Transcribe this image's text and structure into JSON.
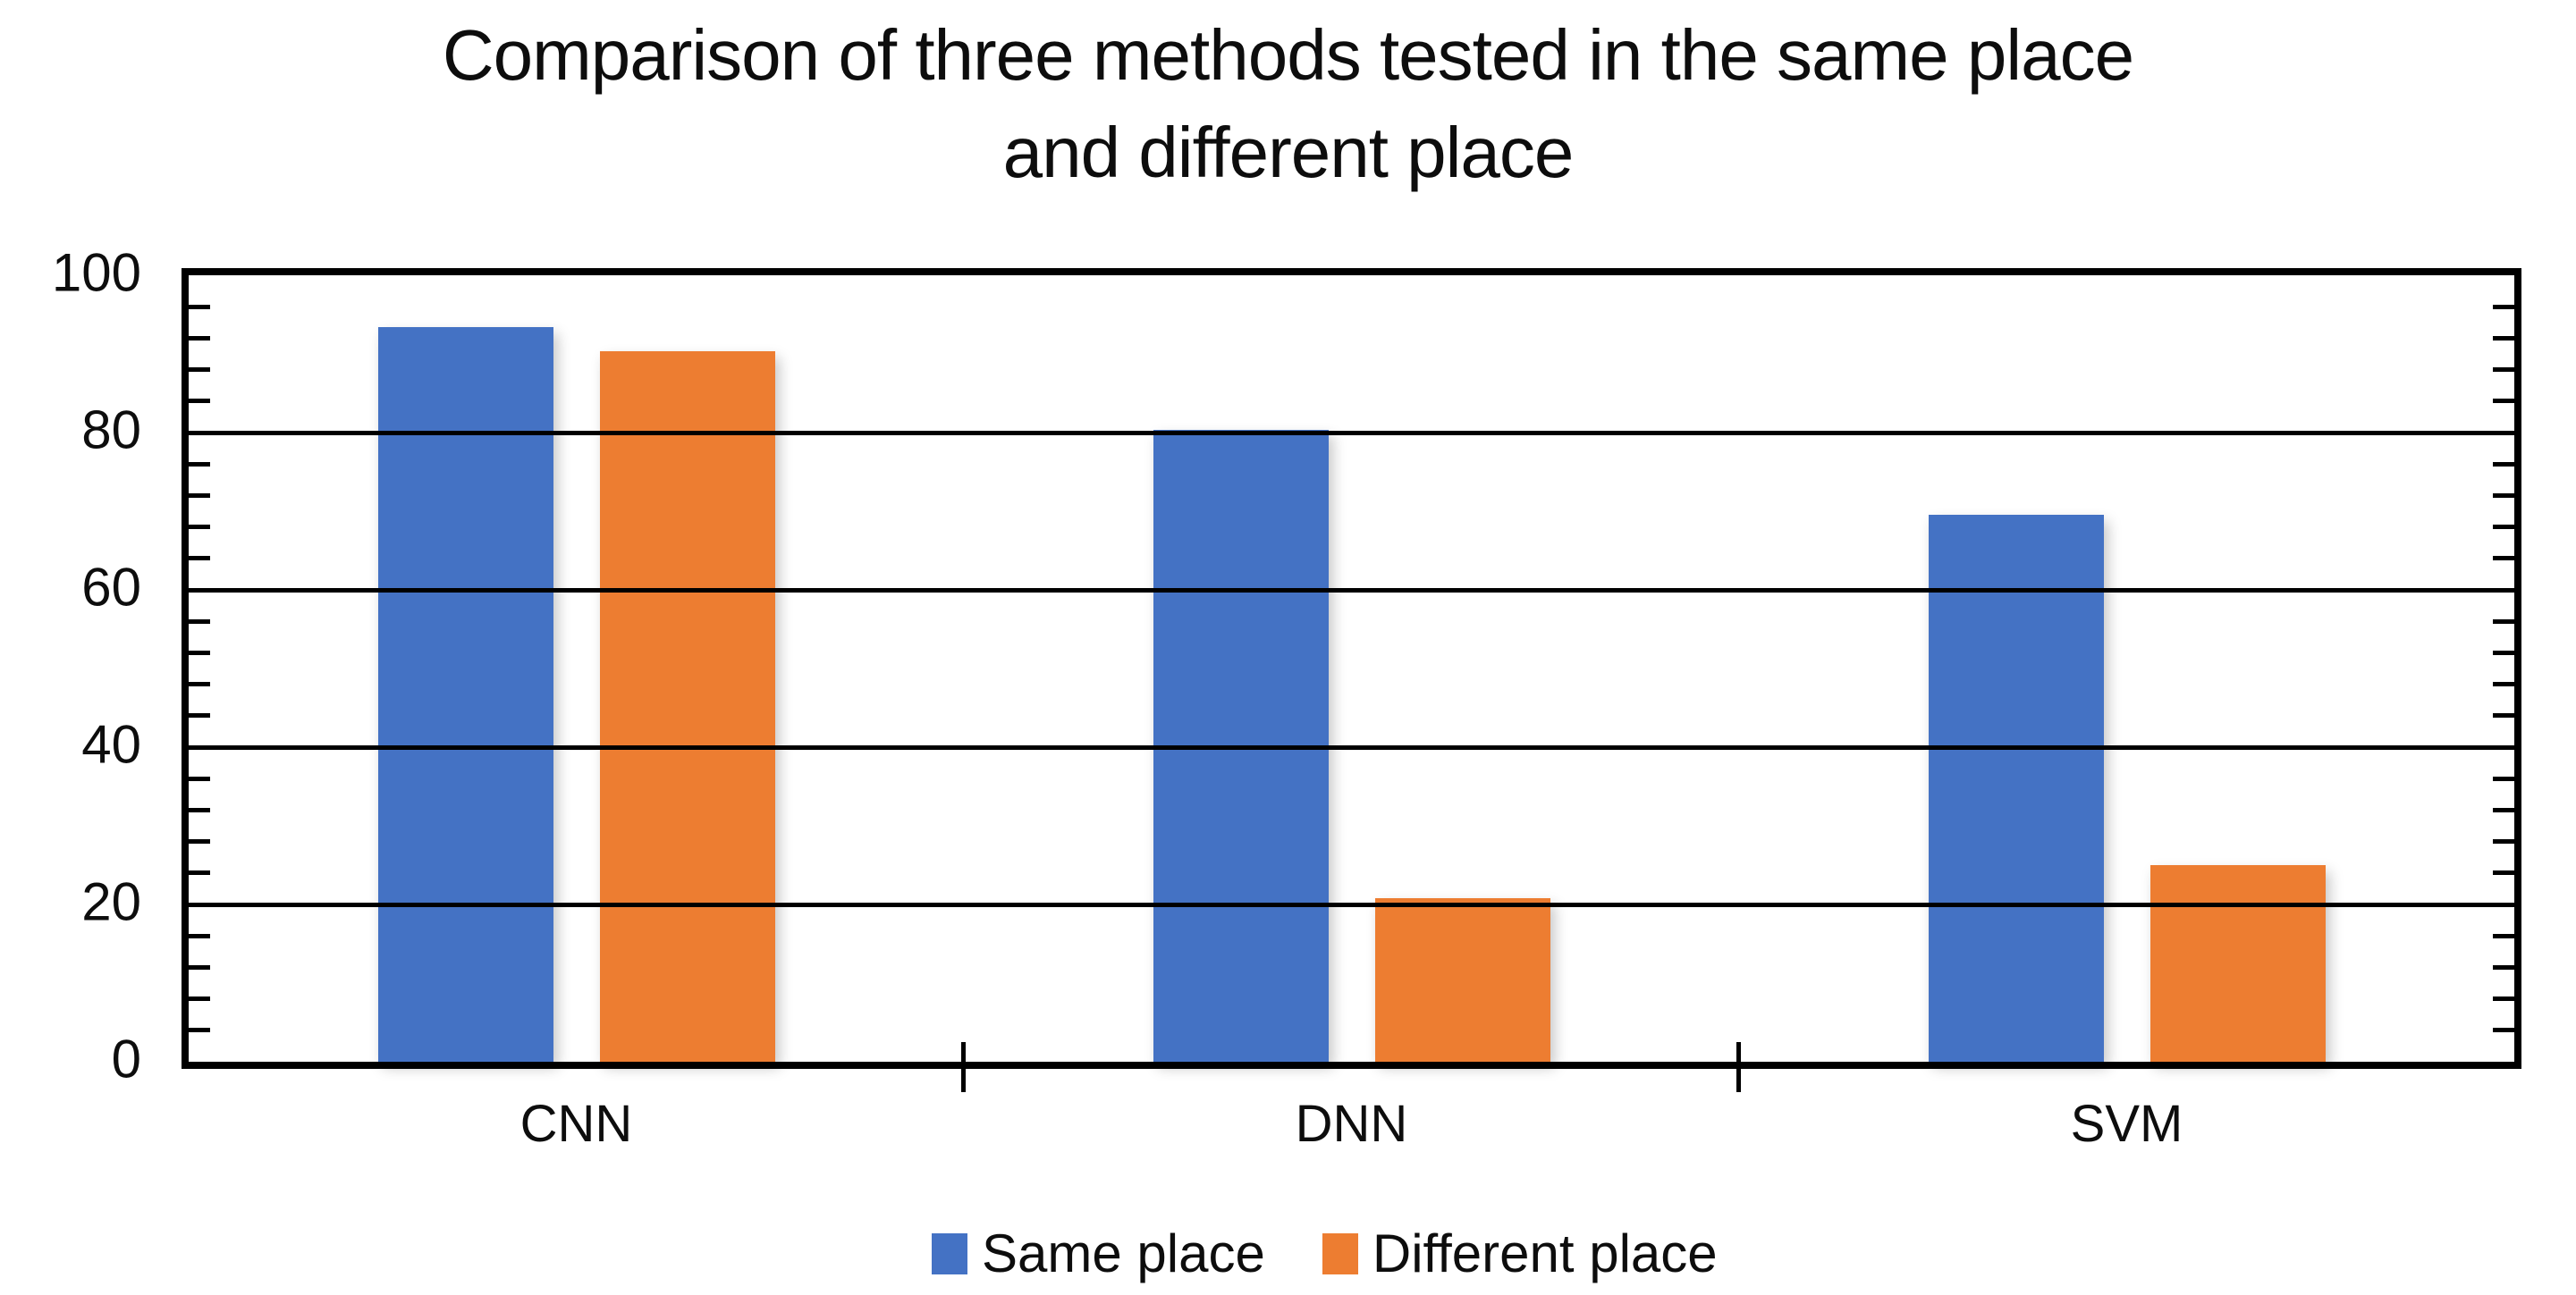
{
  "chart_data": {
    "type": "bar",
    "title": "Comparison of three methods tested in the same place and different place",
    "title_lines": [
      "Comparison of three methods tested in the same place",
      "and different place"
    ],
    "categories": [
      "CNN",
      "DNN",
      "SVM"
    ],
    "series": [
      {
        "name": "Same place",
        "color": "#4472C4",
        "values": [
          93.4,
          80.3,
          69.5
        ]
      },
      {
        "name": "Different place",
        "color": "#ED7D31",
        "values": [
          90.3,
          20.8,
          25.0
        ]
      }
    ],
    "xlabel": "",
    "ylabel": "",
    "ylim": [
      0,
      100
    ],
    "yticks": [
      0,
      20,
      40,
      60,
      80,
      100
    ],
    "minor_tick_step": 4,
    "grid": "horizontal-major",
    "axis_color": "#000000",
    "text_color": "#0d0d0d",
    "background_color": "#ffffff",
    "legend_position": "bottom"
  }
}
